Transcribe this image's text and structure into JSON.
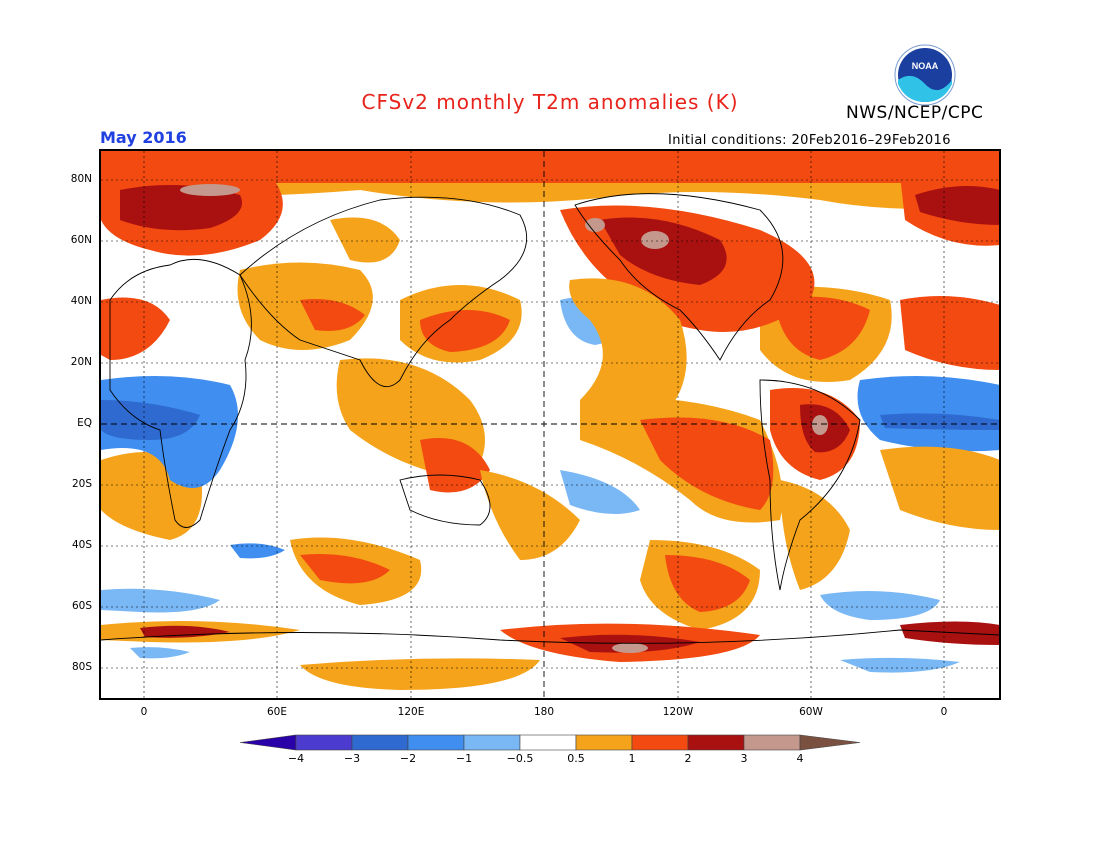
{
  "title": "CFSv2 monthly T2m anomalies (K)",
  "agency": "NWS/NCEP/CPC",
  "period": "May 2016",
  "initial_conditions": "Initial conditions: 20Feb2016–29Feb2016",
  "logo": {
    "label": "NOAA",
    "icon": "noaa-logo"
  },
  "map": {
    "lat_labels": [
      "80N",
      "60N",
      "40N",
      "20N",
      "EQ",
      "20S",
      "40S",
      "60S",
      "80S"
    ],
    "lon_labels": [
      "0",
      "60E",
      "120E",
      "180",
      "120W",
      "60W",
      "0"
    ]
  },
  "colorbar": {
    "labels": [
      "−4",
      "−3",
      "−2",
      "−1",
      "−0.5",
      "0.5",
      "1",
      "2",
      "3",
      "4"
    ],
    "colors": [
      "#2a00a8",
      "#4b3ccf",
      "#2e6ad0",
      "#3f8ef0",
      "#7ab8f5",
      "#ffffff",
      "#f5a31a",
      "#f24a10",
      "#a91010",
      "#c4988c",
      "#7a5040"
    ]
  }
}
